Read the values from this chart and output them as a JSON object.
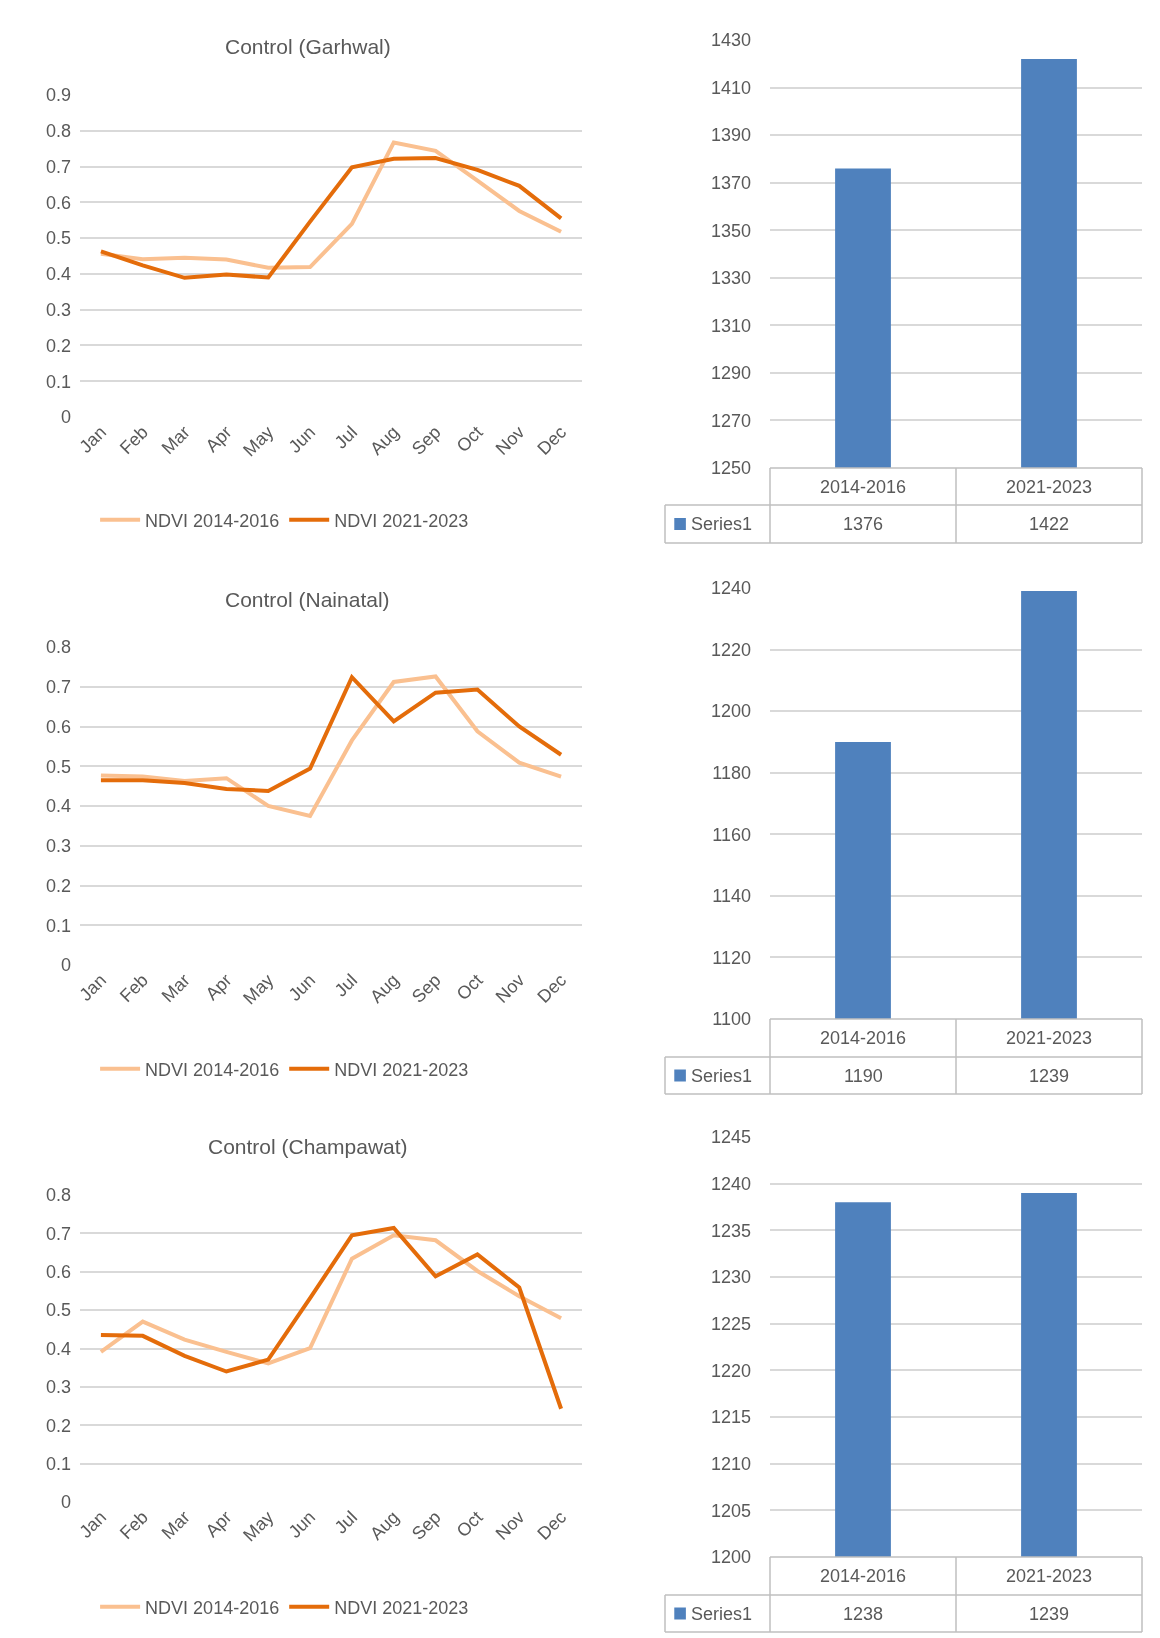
{
  "chart_data": [
    {
      "type": "line",
      "title": "Control (Garhwal)",
      "categories": [
        "Jan",
        "Feb",
        "Mar",
        "Apr",
        "May",
        "Jun",
        "Jul",
        "Aug",
        "Sep",
        "Oct",
        "Nov",
        "Dec"
      ],
      "ylim": [
        0,
        0.9
      ],
      "yticks": [
        0,
        0.1,
        0.2,
        0.3,
        0.4,
        0.5,
        0.6,
        0.7,
        0.8,
        0.9
      ],
      "grid": "y",
      "legend": "bottom",
      "marker": "none",
      "line_style": "solid",
      "series": [
        {
          "name": "NDVI 2014-2016",
          "color": "#fac090",
          "values": [
            0.456,
            0.441,
            0.445,
            0.44,
            0.417,
            0.419,
            0.54,
            0.767,
            0.744,
            0.661,
            0.576,
            0.518
          ]
        },
        {
          "name": "NDVI 2021-2023",
          "color": "#e46c0a",
          "values": [
            0.463,
            0.424,
            0.389,
            0.398,
            0.39,
            0.546,
            0.698,
            0.722,
            0.724,
            0.691,
            0.646,
            0.555
          ]
        }
      ]
    },
    {
      "type": "bar",
      "categories": [
        "2014-2016",
        "2021-2023"
      ],
      "ylim": [
        1250,
        1430
      ],
      "yticks": [
        1250,
        1270,
        1290,
        1310,
        1330,
        1350,
        1370,
        1390,
        1410,
        1430
      ],
      "grid": "y",
      "data_labels": true,
      "series": [
        {
          "name": "Series1",
          "color": "#4f81bd",
          "values": [
            1376,
            1422
          ]
        }
      ]
    },
    {
      "type": "line",
      "title": "Control (Nainatal)",
      "categories": [
        "Jan",
        "Feb",
        "Mar",
        "Apr",
        "May",
        "Jun",
        "Jul",
        "Aug",
        "Sep",
        "Oct",
        "Nov",
        "Dec"
      ],
      "ylim": [
        0,
        0.8
      ],
      "yticks": [
        0,
        0.1,
        0.2,
        0.3,
        0.4,
        0.5,
        0.6,
        0.7,
        0.8
      ],
      "grid": "y",
      "legend": "bottom",
      "marker": "none",
      "line_style": "solid",
      "series": [
        {
          "name": "NDVI 2014-2016",
          "color": "#fac090",
          "values": [
            0.477,
            0.474,
            0.463,
            0.47,
            0.4,
            0.375,
            0.565,
            0.712,
            0.726,
            0.588,
            0.509,
            0.474
          ]
        },
        {
          "name": "NDVI 2021-2023",
          "color": "#e46c0a",
          "values": [
            0.465,
            0.465,
            0.458,
            0.443,
            0.438,
            0.494,
            0.724,
            0.613,
            0.685,
            0.693,
            0.6,
            0.529
          ]
        }
      ]
    },
    {
      "type": "bar",
      "categories": [
        "2014-2016",
        "2021-2023"
      ],
      "ylim": [
        1100,
        1240
      ],
      "yticks": [
        1100,
        1120,
        1140,
        1160,
        1180,
        1200,
        1220,
        1240
      ],
      "grid": "y",
      "data_labels": true,
      "series": [
        {
          "name": "Series1",
          "color": "#4f81bd",
          "values": [
            1190,
            1239
          ]
        }
      ]
    },
    {
      "type": "line",
      "title": "Control (Champawat)",
      "categories": [
        "Jan",
        "Feb",
        "Mar",
        "Apr",
        "May",
        "Jun",
        "Jul",
        "Aug",
        "Sep",
        "Oct",
        "Nov",
        "Dec"
      ],
      "ylim": [
        0,
        0.8
      ],
      "yticks": [
        0,
        0.1,
        0.2,
        0.3,
        0.4,
        0.5,
        0.6,
        0.7,
        0.8
      ],
      "grid": "y",
      "legend": "bottom",
      "marker": "none",
      "line_style": "solid",
      "series": [
        {
          "name": "NDVI 2014-2016",
          "color": "#fac090",
          "values": [
            0.391,
            0.47,
            0.423,
            0.391,
            0.361,
            0.401,
            0.634,
            0.695,
            0.682,
            0.602,
            0.536,
            0.479
          ]
        },
        {
          "name": "NDVI 2021-2023",
          "color": "#e46c0a",
          "values": [
            0.435,
            0.433,
            0.381,
            0.34,
            0.371,
            0.531,
            0.695,
            0.714,
            0.588,
            0.645,
            0.559,
            0.243
          ]
        }
      ]
    },
    {
      "type": "bar",
      "categories": [
        "2014-2016",
        "2021-2023"
      ],
      "ylim": [
        1200,
        1245
      ],
      "yticks": [
        1200,
        1205,
        1210,
        1215,
        1220,
        1225,
        1230,
        1235,
        1240,
        1245
      ],
      "grid": "y",
      "data_labels": true,
      "series": [
        {
          "name": "Series1",
          "color": "#4f81bd",
          "values": [
            1238,
            1239
          ]
        }
      ]
    }
  ]
}
